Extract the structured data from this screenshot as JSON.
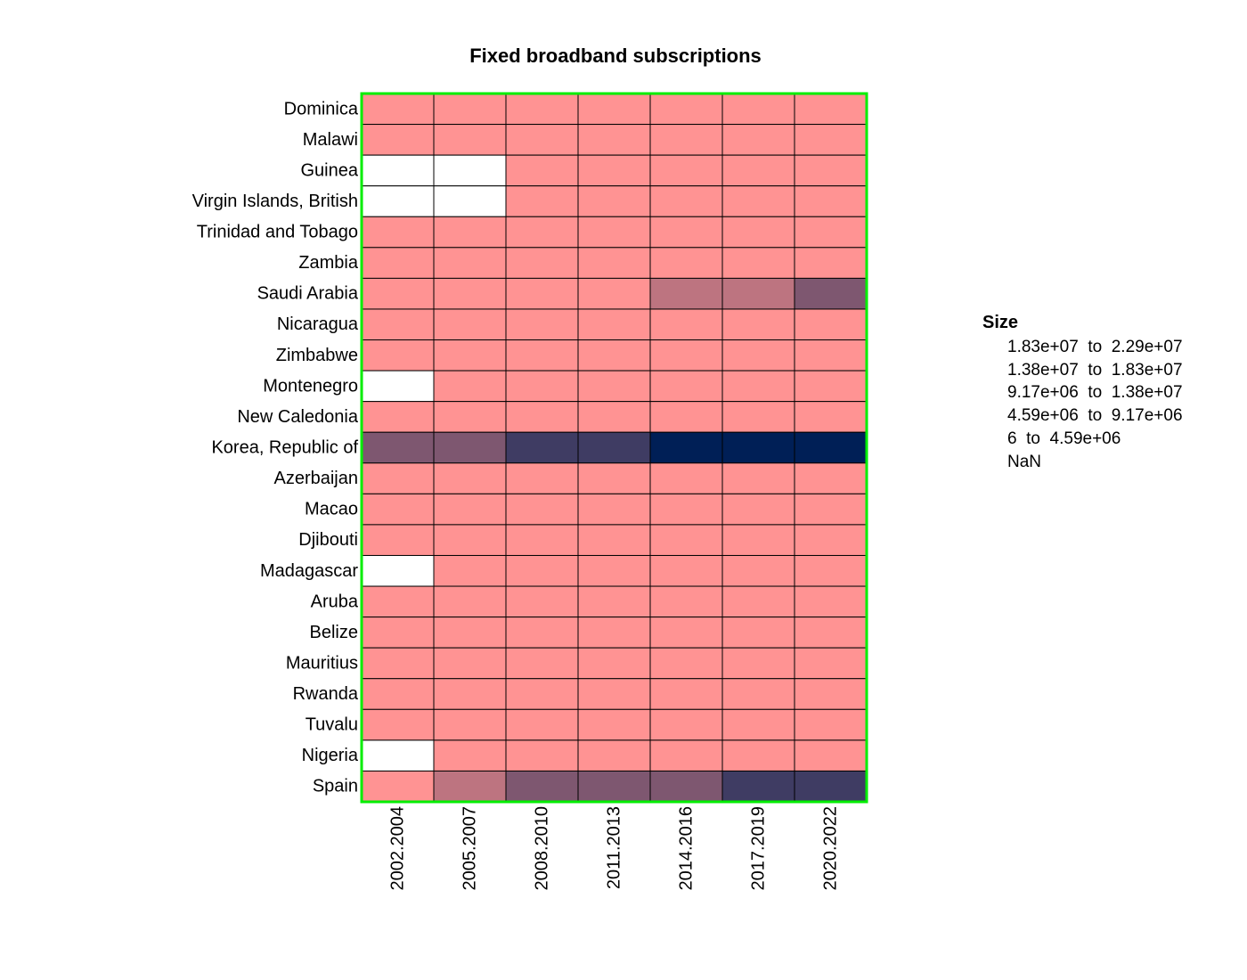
{
  "chart_data": {
    "type": "heatmap",
    "title": "Fixed broadband subscriptions",
    "xlabel": "",
    "ylabel": "",
    "x_categories": [
      "2002.2004",
      "2005.2007",
      "2008.2010",
      "2011.2013",
      "2014.2016",
      "2017.2019",
      "2020.2022"
    ],
    "y_categories": [
      "Dominica",
      "Malawi",
      "Guinea",
      "Virgin Islands, British",
      "Trinidad and Tobago",
      "Zambia",
      "Saudi Arabia",
      "Nicaragua",
      "Zimbabwe",
      "Montenegro",
      "New Caledonia",
      "Korea, Republic of",
      "Azerbaijan",
      "Macao",
      "Djibouti",
      "Madagascar",
      "Aruba",
      "Belize",
      "Mauritius",
      "Rwanda",
      "Tuvalu",
      "Nigeria",
      "Spain"
    ],
    "cell_bins": [
      [
        1,
        1,
        1,
        1,
        1,
        1,
        1
      ],
      [
        1,
        1,
        1,
        1,
        1,
        1,
        1
      ],
      [
        0,
        0,
        1,
        1,
        1,
        1,
        1
      ],
      [
        0,
        0,
        1,
        1,
        1,
        1,
        1
      ],
      [
        1,
        1,
        1,
        1,
        1,
        1,
        1
      ],
      [
        1,
        1,
        1,
        1,
        1,
        1,
        1
      ],
      [
        1,
        1,
        1,
        1,
        2,
        2,
        3
      ],
      [
        1,
        1,
        1,
        1,
        1,
        1,
        1
      ],
      [
        1,
        1,
        1,
        1,
        1,
        1,
        1
      ],
      [
        0,
        1,
        1,
        1,
        1,
        1,
        1
      ],
      [
        1,
        1,
        1,
        1,
        1,
        1,
        1
      ],
      [
        3,
        3,
        4,
        4,
        5,
        5,
        5
      ],
      [
        1,
        1,
        1,
        1,
        1,
        1,
        1
      ],
      [
        1,
        1,
        1,
        1,
        1,
        1,
        1
      ],
      [
        1,
        1,
        1,
        1,
        1,
        1,
        1
      ],
      [
        0,
        1,
        1,
        1,
        1,
        1,
        1
      ],
      [
        1,
        1,
        1,
        1,
        1,
        1,
        1
      ],
      [
        1,
        1,
        1,
        1,
        1,
        1,
        1
      ],
      [
        1,
        1,
        1,
        1,
        1,
        1,
        1
      ],
      [
        1,
        1,
        1,
        1,
        1,
        1,
        1
      ],
      [
        1,
        1,
        1,
        1,
        1,
        1,
        1
      ],
      [
        0,
        1,
        1,
        1,
        1,
        1,
        1
      ],
      [
        1,
        2,
        3,
        3,
        3,
        4,
        4
      ]
    ],
    "bins": [
      {
        "label": "NaN",
        "color": "#ffffff"
      },
      {
        "label": "6  to  4.59e+06",
        "color": "#ff9393"
      },
      {
        "label": "4.59e+06  to  9.17e+06",
        "color": "#bd7480"
      },
      {
        "label": "9.17e+06  to  1.38e+07",
        "color": "#7e5770"
      },
      {
        "label": "1.38e+07  to  1.83e+07",
        "color": "#3f3c63"
      },
      {
        "label": "1.83e+07  to  2.29e+07",
        "color": "#001f56"
      }
    ],
    "legend": {
      "title": "Size",
      "placement": "right",
      "order": [
        5,
        4,
        3,
        2,
        1,
        0
      ]
    },
    "grid": true,
    "frame_color": "#00ee00"
  }
}
